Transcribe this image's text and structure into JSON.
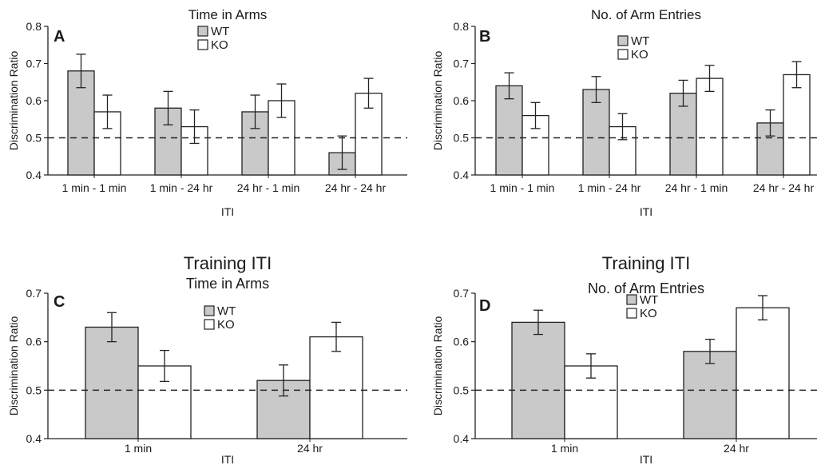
{
  "chart_data": [
    {
      "type": "bar",
      "panel_letter": "A",
      "supertitle": "",
      "title": "Time in Arms",
      "xlabel": "ITI",
      "ylabel": "Discrimination Ratio",
      "ylim": [
        0.4,
        0.8
      ],
      "yticks": [
        "0.4",
        "0.5",
        "0.6",
        "0.7",
        "0.8"
      ],
      "categories": [
        "1 min - 1 min",
        "1 min - 24 hr",
        "24 hr - 1 min",
        "24 hr - 24 hr"
      ],
      "series": [
        {
          "name": "WT",
          "color": "#c9c9c9",
          "values": [
            0.68,
            0.58,
            0.57,
            0.46
          ],
          "errors": [
            0.045,
            0.045,
            0.045,
            0.045
          ]
        },
        {
          "name": "KO",
          "color": "#ffffff",
          "values": [
            0.57,
            0.53,
            0.6,
            0.62
          ],
          "errors": [
            0.045,
            0.045,
            0.045,
            0.04
          ]
        }
      ],
      "reference_line": 0.5,
      "grid": false,
      "legend_position": "top-center"
    },
    {
      "type": "bar",
      "panel_letter": "B",
      "supertitle": "",
      "title": "No. of Arm Entries",
      "xlabel": "ITI",
      "ylabel": "Discrimination Ratio",
      "ylim": [
        0.4,
        0.8
      ],
      "yticks": [
        "0.4",
        "0.5",
        "0.6",
        "0.7",
        "0.8"
      ],
      "categories": [
        "1 min - 1 min",
        "1 min - 24 hr",
        "24 hr - 1 min",
        "24 hr - 24 hr"
      ],
      "series": [
        {
          "name": "WT",
          "color": "#c9c9c9",
          "values": [
            0.64,
            0.63,
            0.62,
            0.54
          ],
          "errors": [
            0.035,
            0.035,
            0.035,
            0.035
          ]
        },
        {
          "name": "KO",
          "color": "#ffffff",
          "values": [
            0.56,
            0.53,
            0.66,
            0.67
          ],
          "errors": [
            0.035,
            0.035,
            0.035,
            0.035
          ]
        }
      ],
      "reference_line": 0.5,
      "grid": false,
      "legend_position": "top-center"
    },
    {
      "type": "bar",
      "panel_letter": "C",
      "supertitle": "Training ITI",
      "title": "Time in Arms",
      "xlabel": "ITI",
      "ylabel": "Discrimination Ratio",
      "ylim": [
        0.4,
        0.7
      ],
      "yticks": [
        "0.4",
        "0.5",
        "0.6",
        "0.7"
      ],
      "categories": [
        "1 min",
        "24 hr"
      ],
      "series": [
        {
          "name": "WT",
          "color": "#c9c9c9",
          "values": [
            0.63,
            0.52
          ],
          "errors": [
            0.03,
            0.032
          ]
        },
        {
          "name": "KO",
          "color": "#ffffff",
          "values": [
            0.55,
            0.61
          ],
          "errors": [
            0.032,
            0.03
          ]
        }
      ],
      "reference_line": 0.5,
      "grid": false,
      "legend_position": "top-center"
    },
    {
      "type": "bar",
      "panel_letter": "D",
      "supertitle": "Training ITI",
      "title": "No. of Arm Entries",
      "xlabel": "ITI",
      "ylabel": "Discrimination Ratio",
      "ylim": [
        0.4,
        0.7
      ],
      "yticks": [
        "0.4",
        "0.5",
        "0.6",
        "0.7"
      ],
      "categories": [
        "1 min",
        "24 hr"
      ],
      "series": [
        {
          "name": "WT",
          "color": "#c9c9c9",
          "values": [
            0.64,
            0.58
          ],
          "errors": [
            0.025,
            0.025
          ]
        },
        {
          "name": "KO",
          "color": "#ffffff",
          "values": [
            0.55,
            0.67
          ],
          "errors": [
            0.025,
            0.025
          ]
        }
      ],
      "reference_line": 0.5,
      "grid": false,
      "legend_position": "top-center"
    }
  ]
}
